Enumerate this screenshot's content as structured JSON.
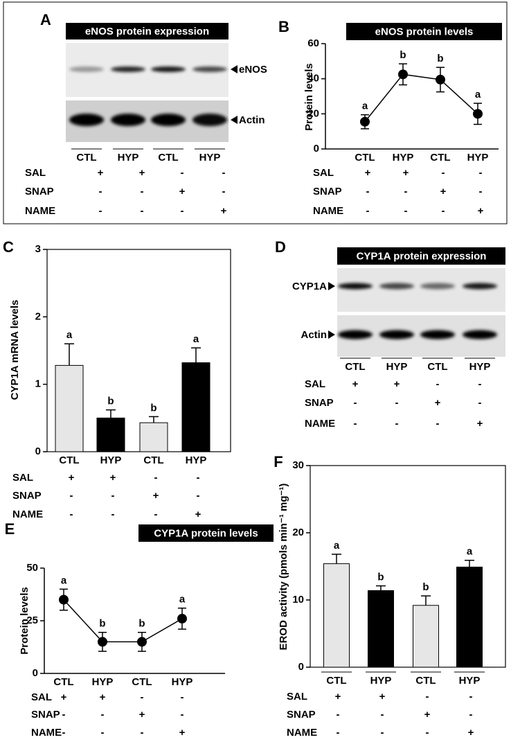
{
  "blots": [
    {
      "panel": "A",
      "title": "eNOS protein expression",
      "bands": [
        "eNOS",
        "Actin"
      ],
      "lanes": [
        "CTL",
        "HYP",
        "CTL",
        "HYP"
      ],
      "treatments": [
        {
          "name": "SAL",
          "marks": [
            "+",
            "+",
            "-",
            "-"
          ]
        },
        {
          "name": "SNAP",
          "marks": [
            "-",
            "-",
            "+",
            "-"
          ]
        },
        {
          "name": "NAME",
          "marks": [
            "-",
            "-",
            "-",
            "+"
          ]
        }
      ]
    },
    {
      "panel": "D",
      "title": "CYP1A protein expression",
      "bands": [
        "CYP1A",
        "Actin"
      ],
      "lanes": [
        "CTL",
        "HYP",
        "CTL",
        "HYP"
      ],
      "treatments": [
        {
          "name": "SAL",
          "marks": [
            "+",
            "+",
            "-",
            "-"
          ]
        },
        {
          "name": "SNAP",
          "marks": [
            "-",
            "-",
            "+",
            "-"
          ]
        },
        {
          "name": "NAME",
          "marks": [
            "-",
            "-",
            "-",
            "+"
          ]
        }
      ]
    }
  ],
  "chart_data": [
    {
      "panel": "B",
      "type": "line",
      "title": "eNOS protein levels",
      "y_label": "Protein levels",
      "categories": [
        "CTL",
        "HYP",
        "CTL",
        "HYP"
      ],
      "values": [
        15.5,
        42.5,
        39.5,
        20
      ],
      "errors": [
        4,
        6,
        7,
        6
      ],
      "letters": [
        "a",
        "b",
        "b",
        "a"
      ],
      "color": "#000000",
      "ylim": [
        0,
        60
      ],
      "yticks": [
        0,
        20,
        40,
        60
      ],
      "treatments": [
        {
          "name": "SAL",
          "marks": [
            "+",
            "+",
            "-",
            "-"
          ]
        },
        {
          "name": "SNAP",
          "marks": [
            "-",
            "-",
            "+",
            "-"
          ]
        },
        {
          "name": "NAME",
          "marks": [
            "-",
            "-",
            "-",
            "+"
          ]
        }
      ]
    },
    {
      "panel": "C",
      "type": "bar",
      "y_label": "CYP1A mRNA levels",
      "categories": [
        "CTL",
        "HYP",
        "CTL",
        "HYP"
      ],
      "values": [
        1.28,
        0.5,
        0.43,
        1.32
      ],
      "errors": [
        0.32,
        0.12,
        0.09,
        0.22
      ],
      "letters": [
        "a",
        "b",
        "b",
        "a"
      ],
      "colors": [
        "#e6e6e6",
        "#000000",
        "#e6e6e6",
        "#000000"
      ],
      "ylim": [
        0,
        3
      ],
      "yticks": [
        0,
        1,
        2,
        3
      ],
      "treatments": [
        {
          "name": "SAL",
          "marks": [
            "+",
            "+",
            "-",
            "-"
          ]
        },
        {
          "name": "SNAP",
          "marks": [
            "-",
            "-",
            "+",
            "-"
          ]
        },
        {
          "name": "NAME",
          "marks": [
            "-",
            "-",
            "-",
            "+"
          ]
        }
      ]
    },
    {
      "panel": "E",
      "type": "line",
      "title": "CYP1A protein levels",
      "y_label": "Protein levels",
      "categories": [
        "CTL",
        "HYP",
        "CTL",
        "HYP"
      ],
      "values": [
        35,
        15,
        15,
        26
      ],
      "errors": [
        5,
        4.5,
        4.5,
        5
      ],
      "letters": [
        "a",
        "b",
        "b",
        "a"
      ],
      "color": "#000000",
      "ylim": [
        0,
        50
      ],
      "yticks": [
        0,
        25,
        50
      ],
      "treatments": [
        {
          "name": "SAL",
          "marks": [
            "+",
            "+",
            "-",
            "-"
          ]
        },
        {
          "name": "SNAP",
          "marks": [
            "-",
            "-",
            "+",
            "-"
          ]
        },
        {
          "name": "NAME",
          "marks": [
            "-",
            "-",
            "-",
            "+"
          ]
        }
      ]
    },
    {
      "panel": "F",
      "type": "bar",
      "y_label": "EROD activity (pmols min⁻¹ mg⁻¹)",
      "categories": [
        "CTL",
        "HYP",
        "CTL",
        "HYP"
      ],
      "values": [
        15.4,
        11.4,
        9.2,
        14.9
      ],
      "errors": [
        1.4,
        0.7,
        1.4,
        1.0
      ],
      "letters": [
        "a",
        "b",
        "b",
        "a"
      ],
      "colors": [
        "#e6e6e6",
        "#000000",
        "#e6e6e6",
        "#000000"
      ],
      "ylim": [
        0,
        30
      ],
      "yticks": [
        0,
        10,
        20,
        30
      ],
      "treatments": [
        {
          "name": "SAL",
          "marks": [
            "+",
            "+",
            "-",
            "-"
          ]
        },
        {
          "name": "SNAP",
          "marks": [
            "-",
            "-",
            "+",
            "-"
          ]
        },
        {
          "name": "NAME",
          "marks": [
            "-",
            "-",
            "-",
            "+"
          ]
        }
      ]
    }
  ]
}
